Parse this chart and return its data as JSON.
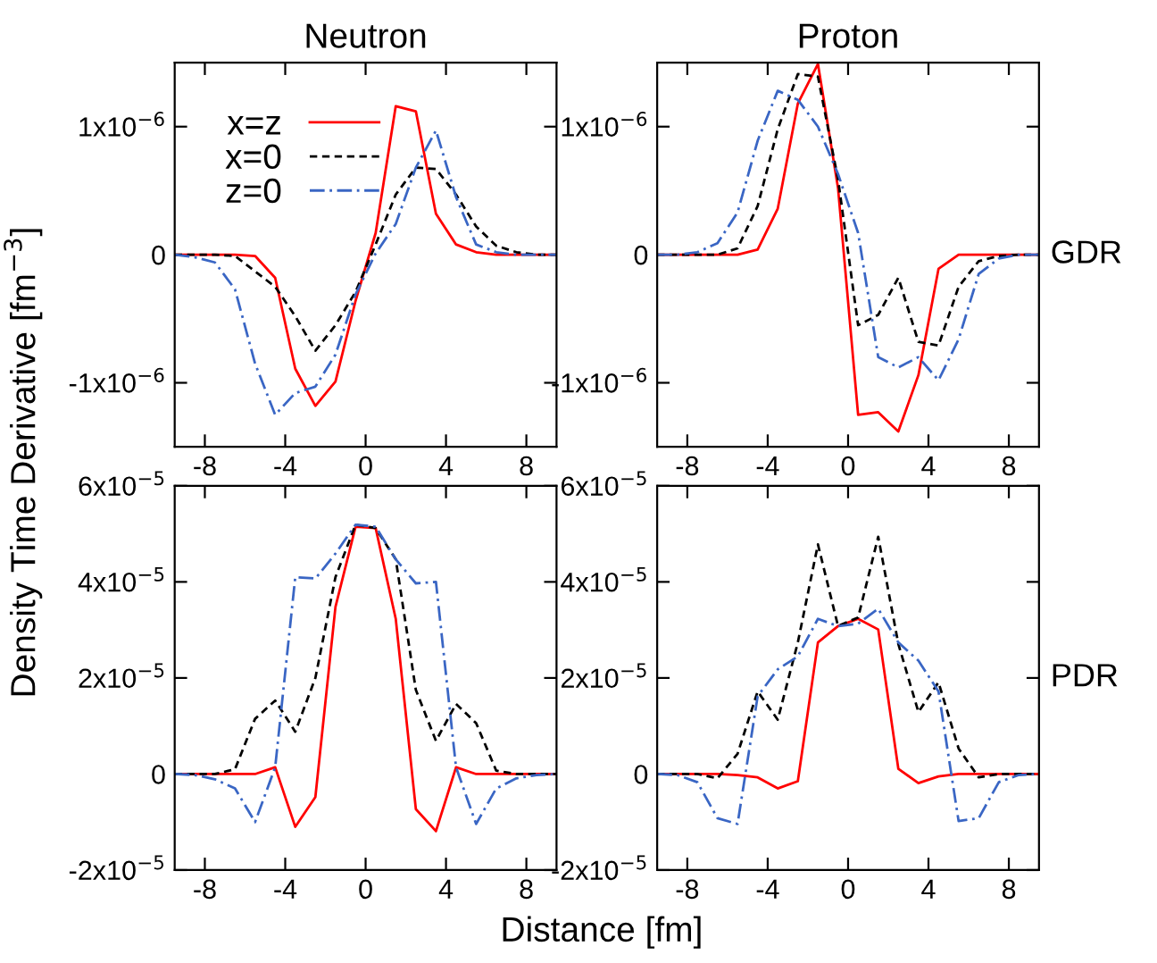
{
  "chart_data": [
    {
      "type": "line",
      "title": "Neutron",
      "ylabel": "Density Time Derivative [fm$^{−3}$]",
      "legend": "top left",
      "grid": false,
      "x": [
        -9.5,
        -8.5,
        -7.5,
        -6.5,
        -5.5,
        -4.5,
        -3.5,
        -2.5,
        -1.5,
        -0.5,
        0.5,
        1.5,
        2.5,
        3.5,
        4.5,
        5.5,
        6.5,
        7.5,
        8.5,
        9.5
      ],
      "xlim": [
        -9.5,
        9.5
      ],
      "xticks": [
        -8,
        -4,
        0,
        4,
        8
      ],
      "ylim": [
        -1.5e-06,
        1.5e-06
      ],
      "yticks": [
        {
          "value": -1e-06,
          "label": "-1x10$^{−6}$"
        },
        0,
        {
          "value": 1e-06,
          "label": "1x10$^{−6}$"
        }
      ],
      "series": [
        {
          "name": "x=z",
          "color": "#ff0000",
          "line_style": "solid",
          "values": [
            0,
            0,
            0,
            0,
            -1e-08,
            -1.8e-07,
            -8.9e-07,
            -1.18e-06,
            -9.9e-07,
            -3.6e-07,
            1.7e-07,
            1.16e-06,
            1.12e-06,
            3.2e-07,
            8e-08,
            2e-08,
            0,
            0,
            0,
            0
          ]
        },
        {
          "name": "x=0",
          "color": "#000000",
          "line_style": "dashed",
          "values": [
            0,
            0,
            0,
            -1e-08,
            -1.3e-07,
            -2.5e-07,
            -4.8e-07,
            -7.5e-07,
            -5.5e-07,
            -2.9e-07,
            8e-08,
            4.7e-07,
            6.8e-07,
            6.7e-07,
            4.7e-07,
            2.2e-07,
            7e-08,
            2e-08,
            0,
            0
          ]
        },
        {
          "name": "z=0",
          "color": "#3a66c4",
          "line_style": "dashdot",
          "values": [
            0,
            -2e-08,
            -6e-08,
            -2.7e-07,
            -8.5e-07,
            -1.25e-06,
            -1.08e-06,
            -1.03e-06,
            -7.8e-07,
            -3.1e-07,
            1e-08,
            2.4e-07,
            6.8e-07,
            9.7e-07,
            4.5e-07,
            8e-08,
            2e-08,
            0,
            0,
            0
          ]
        }
      ]
    },
    {
      "type": "line",
      "title": "Proton",
      "y2label": "GDR",
      "grid": false,
      "x": [
        -9.5,
        -8.5,
        -7.5,
        -6.5,
        -5.5,
        -4.5,
        -3.5,
        -2.5,
        -1.5,
        -0.5,
        0.5,
        1.5,
        2.5,
        3.5,
        4.5,
        5.5,
        6.5,
        7.5,
        8.5,
        9.5
      ],
      "xlim": [
        -9.5,
        9.5
      ],
      "xticks": [
        -8,
        -4,
        0,
        4,
        8
      ],
      "ylim": [
        -1.5e-06,
        1.5e-06
      ],
      "yticks": [
        {
          "value": -1e-06,
          "label": "-1x10$^{−6}$"
        },
        0,
        {
          "value": 1e-06,
          "label": "1x10$^{−6}$"
        }
      ],
      "series": [
        {
          "color": "#ff0000",
          "line_style": "solid",
          "values": [
            0,
            0,
            0,
            0,
            0,
            4e-08,
            3.6e-07,
            1.18e-06,
            1.49e-06,
            5.2e-07,
            -1.25e-06,
            -1.23e-06,
            -1.38e-06,
            -9.4e-07,
            -1.1e-07,
            0,
            0,
            0,
            0,
            0
          ]
        },
        {
          "color": "#000000",
          "line_style": "dashed",
          "values": [
            0,
            0,
            0,
            0,
            5e-08,
            3.8e-07,
            9.8e-07,
            1.41e-06,
            1.39e-06,
            5.9e-07,
            -5.5e-07,
            -4.7e-07,
            -1.8e-07,
            -6.8e-07,
            -7.1e-07,
            -2.5e-07,
            -5e-08,
            -1e-08,
            0,
            0
          ]
        },
        {
          "color": "#3a66c4",
          "line_style": "dashdot",
          "values": [
            0,
            0,
            2e-08,
            9e-08,
            3.3e-07,
            8.9e-07,
            1.28e-06,
            1.21e-06,
            1e-06,
            6.3e-07,
            1.7e-07,
            -8e-07,
            -8.8e-07,
            -8e-07,
            -9.8e-07,
            -6.6e-07,
            -1.5e-07,
            -3e-08,
            0,
            0
          ]
        }
      ]
    },
    {
      "type": "line",
      "xlabel": "Distance [fm]",
      "grid": false,
      "x": [
        -9.5,
        -8.5,
        -7.5,
        -6.5,
        -5.5,
        -4.5,
        -3.5,
        -2.5,
        -1.5,
        -0.5,
        0.5,
        1.5,
        2.5,
        3.5,
        4.5,
        5.5,
        6.5,
        7.5,
        8.5,
        9.5
      ],
      "xlim": [
        -9.5,
        9.5
      ],
      "xticks": [
        -8,
        -4,
        0,
        4,
        8
      ],
      "ylim": [
        -2e-05,
        6e-05
      ],
      "yticks": [
        {
          "value": -2e-05,
          "label": "-2x10$^{−5}$"
        },
        0,
        {
          "value": 2e-05,
          "label": "2x10$^{−5}$"
        },
        {
          "value": 4e-05,
          "label": "4x10$^{−5}$"
        },
        {
          "value": 6e-05,
          "label": "6x10$^{−5}$"
        }
      ],
      "series": [
        {
          "color": "#ff0000",
          "line_style": "solid",
          "values": [
            0,
            0,
            0,
            0,
            0,
            1.4e-06,
            -1.1e-05,
            -4.8e-06,
            3.48e-05,
            5.15e-05,
            5.12e-05,
            3.23e-05,
            -7.3e-06,
            -1.19e-05,
            1.4e-06,
            0,
            0,
            0,
            0,
            0
          ]
        },
        {
          "color": "#000000",
          "line_style": "dashed",
          "values": [
            0,
            0,
            0,
            1e-06,
            1.15e-05,
            1.53e-05,
            8.8e-06,
            2e-05,
            4.1e-05,
            5.19e-05,
            5.12e-05,
            4.47e-05,
            1.75e-05,
            6.9e-06,
            1.46e-05,
            1.06e-05,
            7e-07,
            0,
            0,
            0
          ]
        },
        {
          "color": "#3a66c4",
          "line_style": "dashdot",
          "values": [
            0,
            -2e-07,
            -1.1e-06,
            -3e-06,
            -1e-05,
            1.4e-06,
            4.1e-05,
            4.07e-05,
            4.59e-05,
            5.19e-05,
            5.15e-05,
            4.47e-05,
            3.97e-05,
            4e-05,
            1.4e-06,
            -1.04e-05,
            -3e-06,
            -9e-07,
            -2e-07,
            0
          ]
        }
      ]
    },
    {
      "type": "line",
      "y2label": "PDR",
      "grid": false,
      "x": [
        -9.5,
        -8.5,
        -7.5,
        -6.5,
        -5.5,
        -4.5,
        -3.5,
        -2.5,
        -1.5,
        -0.5,
        0.5,
        1.5,
        2.5,
        3.5,
        4.5,
        5.5,
        6.5,
        7.5,
        8.5,
        9.5
      ],
      "xlim": [
        -9.5,
        9.5
      ],
      "xticks": [
        -8,
        -4,
        0,
        4,
        8
      ],
      "ylim": [
        -2e-05,
        6e-05
      ],
      "yticks": [
        {
          "value": -2e-05,
          "label": "-2x10$^{−5}$"
        },
        0,
        {
          "value": 2e-05,
          "label": "2x10$^{−5}$"
        },
        {
          "value": 4e-05,
          "label": "4x10$^{−5}$"
        },
        {
          "value": 6e-05,
          "label": "6x10$^{−5}$"
        }
      ],
      "series": [
        {
          "color": "#ff0000",
          "line_style": "solid",
          "values": [
            0,
            0,
            0,
            0,
            -2e-07,
            -7e-07,
            -3e-06,
            -1.5e-06,
            2.74e-05,
            3.08e-05,
            3.23e-05,
            3.01e-05,
            1.1e-06,
            -1.9e-06,
            -5e-07,
            0,
            0,
            0,
            0,
            0
          ]
        },
        {
          "color": "#000000",
          "line_style": "dashed",
          "values": [
            0,
            0,
            0,
            -9e-07,
            4.2e-06,
            1.72e-05,
            1.13e-05,
            2.74e-05,
            4.78e-05,
            3.08e-05,
            3.26e-05,
            4.94e-05,
            2.71e-05,
            1.29e-05,
            1.91e-05,
            5.3e-06,
            -7e-07,
            0,
            0,
            0
          ]
        },
        {
          "color": "#3a66c4",
          "line_style": "dashdot",
          "values": [
            0,
            -2e-07,
            -1.7e-06,
            -9.2e-06,
            -1.04e-05,
            1.62e-05,
            2.18e-05,
            2.45e-05,
            3.23e-05,
            3.08e-05,
            3.13e-05,
            3.44e-05,
            2.74e-05,
            2.36e-05,
            1.72e-05,
            -9.8e-06,
            -9.2e-06,
            -1.7e-06,
            -2e-07,
            0
          ]
        }
      ]
    }
  ]
}
